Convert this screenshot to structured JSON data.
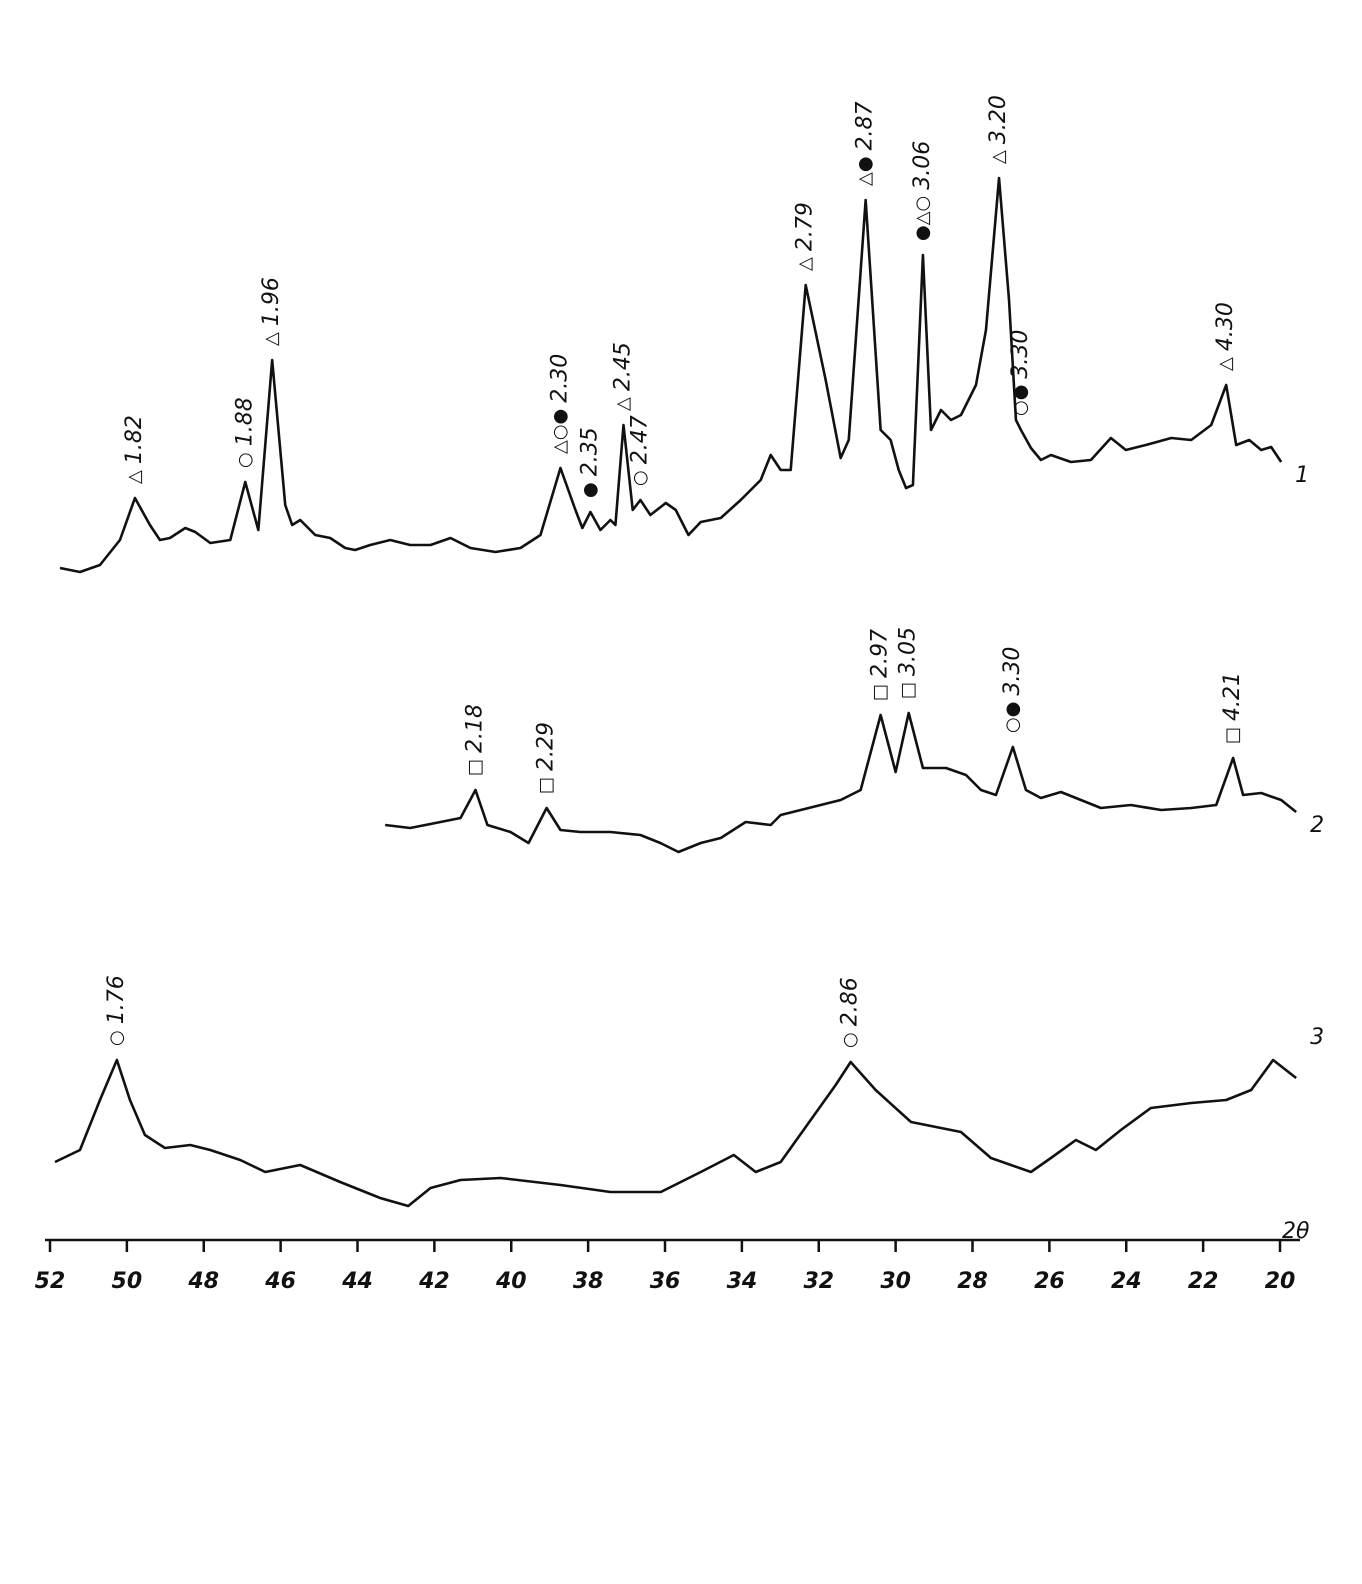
{
  "chart_data": {
    "type": "line",
    "x_label": "2θ",
    "xlim": [
      52.13,
      19.48
    ],
    "ylim": [
      0,
      100
    ],
    "xticks": [
      52,
      50,
      48,
      46,
      44,
      42,
      40,
      38,
      36,
      34,
      32,
      30,
      28,
      26,
      24,
      22,
      20
    ],
    "color": "#111111",
    "series": [
      {
        "name": "1",
        "x": [
          51.74,
          51.22,
          50.7,
          50.18,
          49.79,
          49.4,
          49.14,
          48.88,
          48.48,
          48.22,
          47.83,
          47.31,
          46.92,
          46.58,
          46.22,
          45.88,
          45.7,
          45.49,
          45.1,
          44.71,
          44.32,
          44.06,
          43.67,
          43.15,
          42.63,
          42.1,
          41.58,
          41.06,
          40.41,
          39.76,
          39.24,
          38.72,
          38.33,
          38.15,
          37.94,
          37.68,
          37.42,
          37.29,
          37.08,
          36.84,
          36.64,
          36.38,
          35.98,
          35.72,
          35.39,
          35.07,
          34.55,
          34.03,
          33.51,
          33.25,
          32.99,
          32.73,
          32.34,
          31.82,
          31.43,
          31.22,
          30.78,
          30.39,
          30.13,
          29.92,
          29.73,
          29.55,
          29.29,
          29.08,
          28.82,
          28.56,
          28.3,
          27.91,
          27.65,
          27.31,
          27.05,
          26.87,
          26.74,
          26.48,
          26.22,
          25.96,
          25.44,
          24.92,
          24.4,
          24.01,
          23.49,
          22.83,
          22.31,
          21.79,
          21.4,
          21.14,
          20.8,
          20.49,
          20.23,
          19.97
        ],
        "values": [
          1.75,
          0.75,
          2.5,
          8.75,
          19.25,
          12.5,
          8.75,
          9.25,
          11.75,
          10.75,
          8,
          8.75,
          23.25,
          11.25,
          53.75,
          17.5,
          12.5,
          13.75,
          10,
          9.25,
          6.75,
          6.25,
          7.5,
          8.75,
          7.5,
          7.5,
          9.25,
          6.75,
          5.75,
          6.75,
          10,
          26.75,
          16.25,
          11.75,
          15.75,
          11.25,
          13.75,
          12.5,
          37.5,
          16.25,
          18.75,
          15,
          18,
          16.25,
          10,
          13.25,
          14.25,
          18.75,
          23.75,
          30,
          26.25,
          26.25,
          72.5,
          48.75,
          29.25,
          33.75,
          93.75,
          36.25,
          33.75,
          26.25,
          21.75,
          22.5,
          80,
          36.25,
          41.25,
          38.75,
          40,
          47.5,
          61.25,
          99.25,
          68.75,
          38.75,
          36.25,
          31.75,
          28.75,
          30,
          28.25,
          28.75,
          34.25,
          31.25,
          32.5,
          34.25,
          33.75,
          37.5,
          47.5,
          32.5,
          33.75,
          31.25,
          32,
          28.25
        ]
      },
      {
        "name": "2",
        "x": [
          43.28,
          42.63,
          41.84,
          41.32,
          40.93,
          40.62,
          40.02,
          39.55,
          39.08,
          38.72,
          38.2,
          37.42,
          36.64,
          36.12,
          35.65,
          35.07,
          34.55,
          33.9,
          33.25,
          32.99,
          32.47,
          31.95,
          31.43,
          30.91,
          30.39,
          30.0,
          29.66,
          29.29,
          28.69,
          28.17,
          27.78,
          27.39,
          26.95,
          26.61,
          26.22,
          25.7,
          25.18,
          24.66,
          23.88,
          23.09,
          22.31,
          21.66,
          21.22,
          20.96,
          20.49,
          19.97,
          19.58
        ],
        "values": [
          7.5,
          6.75,
          8.25,
          9.25,
          16.25,
          7.5,
          5.75,
          3,
          11.75,
          6.25,
          5.75,
          5.75,
          5,
          3,
          0.75,
          3,
          4.25,
          8.25,
          7.5,
          10,
          11.25,
          12.5,
          13.75,
          16.25,
          35,
          20.75,
          35.5,
          21.75,
          21.75,
          20,
          16.25,
          15,
          27,
          16.25,
          14.25,
          15.75,
          13.75,
          11.75,
          12.5,
          11.25,
          11.75,
          12.5,
          24.25,
          15,
          15.5,
          13.75,
          10.75
        ]
      },
      {
        "name": "3",
        "x": [
          51.87,
          51.22,
          50.7,
          50.26,
          49.92,
          49.53,
          49.01,
          48.35,
          47.83,
          47.05,
          46.4,
          45.49,
          44.45,
          43.41,
          42.68,
          42.1,
          41.32,
          40.28,
          38.72,
          37.42,
          36.11,
          35.07,
          34.21,
          33.64,
          32.99,
          32.21,
          31.56,
          31.17,
          30.52,
          29.6,
          28.3,
          27.52,
          26.48,
          25.96,
          25.31,
          24.79,
          24.14,
          23.36,
          22.31,
          21.4,
          20.75,
          20.18,
          19.58
        ],
        "values": [
          12,
          15,
          27.5,
          37.5,
          27.5,
          18.75,
          15.5,
          16.25,
          15,
          12.5,
          9.5,
          11.25,
          7,
          3,
          1,
          5.5,
          7.5,
          8,
          6.25,
          4.5,
          4.5,
          9.5,
          13.75,
          9.5,
          12,
          22.5,
          31.25,
          37,
          30,
          22,
          19.5,
          13,
          9.5,
          13,
          17.5,
          15,
          20,
          25.5,
          26.75,
          27.5,
          30,
          37.5,
          33
        ]
      }
    ],
    "annotations": [
      {
        "series": 0,
        "x": 49.79,
        "y": 19.25,
        "symbols": "△",
        "text": "1.82"
      },
      {
        "series": 0,
        "x": 46.92,
        "y": 23.25,
        "symbols": "○",
        "text": "1.88"
      },
      {
        "series": 0,
        "x": 46.22,
        "y": 53.75,
        "symbols": "△",
        "text": "1.96"
      },
      {
        "series": 0,
        "x": 38.72,
        "y": 26.75,
        "symbols": "△○●",
        "text": "2.30"
      },
      {
        "series": 0,
        "x": 37.94,
        "y": 15.75,
        "symbols": "●",
        "text": "2.35"
      },
      {
        "series": 0,
        "x": 37.08,
        "y": 37.5,
        "symbols": "△",
        "text": "2.45"
      },
      {
        "series": 0,
        "x": 36.64,
        "y": 18.75,
        "symbols": "○",
        "text": "2.47"
      },
      {
        "series": 0,
        "x": 32.34,
        "y": 72.5,
        "symbols": "△",
        "text": "2.79"
      },
      {
        "series": 0,
        "x": 30.78,
        "y": 93.75,
        "symbols": "△●",
        "text": "2.87"
      },
      {
        "series": 0,
        "x": 29.29,
        "y": 80,
        "symbols": "●△○",
        "text": "3.06"
      },
      {
        "series": 0,
        "x": 27.31,
        "y": 99.25,
        "symbols": "△",
        "text": "3.20"
      },
      {
        "series": 0,
        "x": 26.74,
        "y": 36.25,
        "symbols": "○●",
        "text": "3.30"
      },
      {
        "series": 0,
        "x": 21.4,
        "y": 47.5,
        "symbols": "△",
        "text": "4.30"
      },
      {
        "series": 1,
        "x": 40.93,
        "y": 16.25,
        "symbols": "□",
        "text": "2.18"
      },
      {
        "series": 1,
        "x": 39.08,
        "y": 11.75,
        "symbols": "□",
        "text": "2.29"
      },
      {
        "series": 1,
        "x": 30.39,
        "y": 35,
        "symbols": "□",
        "text": "2.97"
      },
      {
        "series": 1,
        "x": 29.66,
        "y": 35.5,
        "symbols": "□",
        "text": "3.05"
      },
      {
        "series": 1,
        "x": 26.95,
        "y": 27,
        "symbols": "○●",
        "text": "3.30"
      },
      {
        "series": 1,
        "x": 21.22,
        "y": 24.25,
        "symbols": "□",
        "text": "4.21"
      },
      {
        "series": 2,
        "x": 50.26,
        "y": 37.5,
        "symbols": "○",
        "text": "1.76"
      },
      {
        "series": 2,
        "x": 31.17,
        "y": 37,
        "symbols": "○",
        "text": "2.86"
      }
    ]
  }
}
